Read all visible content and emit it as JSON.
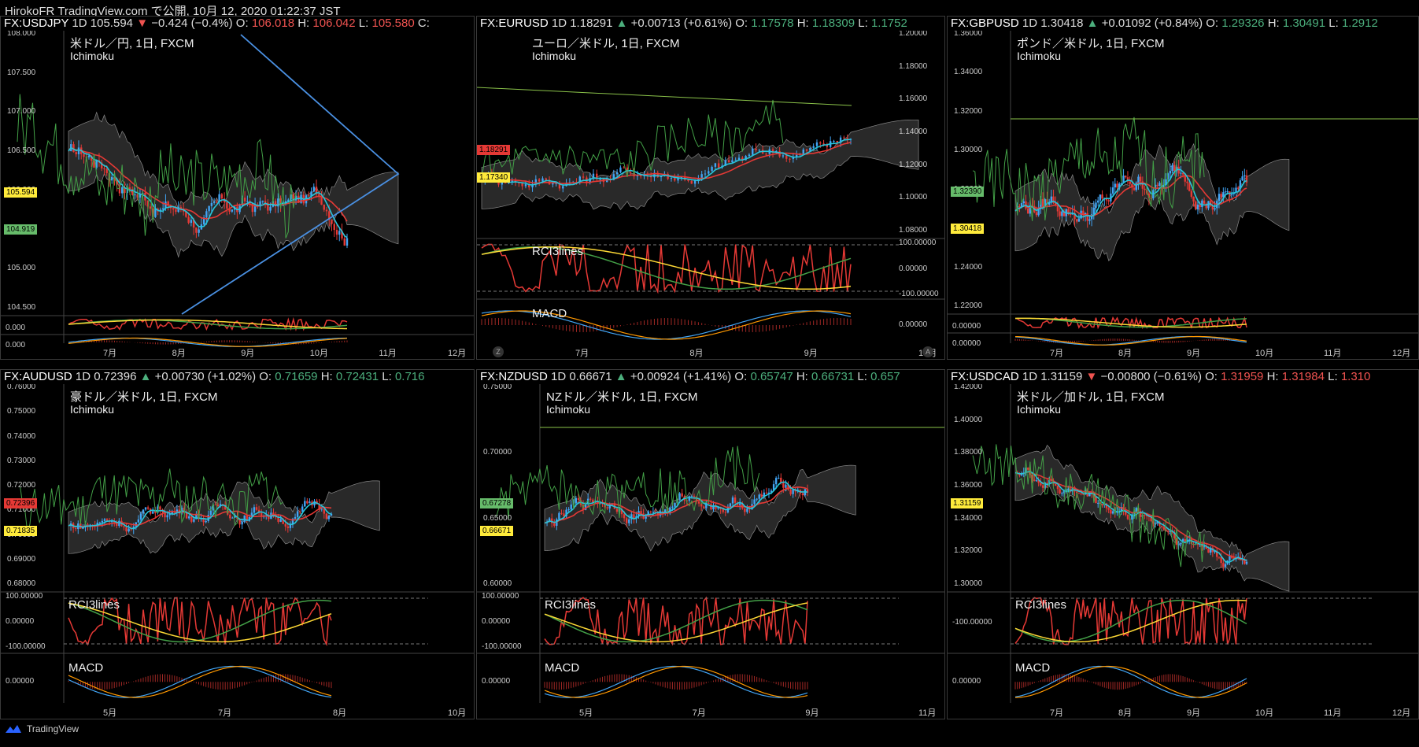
{
  "top_info": "HirokoFR TradingView.com で公開, 10月 12, 2020 01:22:37 JST",
  "footer": {
    "brand": "TradingView",
    "logo_icon": "tradingview-logo-icon"
  },
  "colors": {
    "up": "#4caf7d",
    "down": "#ef5350",
    "tenkan": "#26c6da",
    "kijun": "#e53935",
    "chikou": "#43a047",
    "cloud": "#555555"
  },
  "panels": [
    {
      "symbol": "FX:USDJPY",
      "interval": "1D",
      "last": "105.594",
      "change_arrow": "▼",
      "change": "−0.424 (−0.4%)",
      "direction": "down",
      "o_label": "O:",
      "o": "106.018",
      "h_label": "H:",
      "h": "106.042",
      "l_label": "L:",
      "l": "105.580",
      "c_label": "C:",
      "title": "米ドル／円, 1日, FXCM",
      "indicator": "Ichimoku",
      "y_ticks": [
        "108.000",
        "107.500",
        "107.000",
        "106.500",
        "106.000",
        "105.500",
        "105.000",
        "104.500"
      ],
      "x_ticks": [
        "7月",
        "8月",
        "9月",
        "10月",
        "11月",
        "12月"
      ],
      "price_tags": [
        {
          "text": "105.594",
          "bg": "#ffeb3b"
        },
        {
          "text": "104.919",
          "bg": "#66bb6a"
        }
      ],
      "sub1_label": "RCI3lines",
      "sub1_ticks": [
        "0.000"
      ],
      "sub2_label": "MACD",
      "sub2_ticks": [
        "0.000"
      ]
    },
    {
      "symbol": "FX:EURUSD",
      "interval": "1D",
      "last": "1.18291",
      "change_arrow": "▲",
      "change": "+0.00713 (+0.61%)",
      "direction": "up",
      "o_label": "O:",
      "o": "1.17578",
      "h_label": "H:",
      "h": "1.18309",
      "l_label": "L:",
      "l": "1.1752",
      "title": "ユーロ／米ドル, 1日, FXCM",
      "indicator": "Ichimoku",
      "y_ticks": [
        "1.20000",
        "1.18000",
        "1.16000",
        "1.14000",
        "1.12000",
        "1.10000",
        "1.08000"
      ],
      "x_ticks": [
        "7月",
        "8月",
        "9月",
        "10月"
      ],
      "price_tags": [
        {
          "text": "1.18291",
          "bg": "#e53935"
        },
        {
          "text": "1.17340",
          "bg": "#ffeb3b"
        }
      ],
      "sub1_label": "RCI3lines",
      "sub1_ticks": [
        "100.00000",
        "0.00000",
        "-100.00000"
      ],
      "sub2_label": "MACD",
      "sub2_ticks": [
        "0.00000"
      ]
    },
    {
      "symbol": "FX:GBPUSD",
      "interval": "1D",
      "last": "1.30418",
      "change_arrow": "▲",
      "change": "+0.01092 (+0.84%)",
      "direction": "up",
      "o_label": "O:",
      "o": "1.29326",
      "h_label": "H:",
      "h": "1.30491",
      "l_label": "L:",
      "l": "1.2912",
      "title": "ポンド／米ドル, 1日, FXCM",
      "indicator": "Ichimoku",
      "y_ticks": [
        "1.36000",
        "1.34000",
        "1.32000",
        "1.30000",
        "1.28000",
        "1.26000",
        "1.24000",
        "1.22000"
      ],
      "x_ticks": [
        "7月",
        "8月",
        "9月",
        "10月",
        "11月",
        "12月"
      ],
      "price_tags": [
        {
          "text": "1.32390",
          "bg": "#66bb6a"
        },
        {
          "text": "1.30418",
          "bg": "#ffeb3b"
        }
      ],
      "sub1_label": "RCI3lines",
      "sub1_ticks": [
        "0.00000"
      ],
      "sub2_label": "MACD",
      "sub2_ticks": [
        "0.00000"
      ]
    },
    {
      "symbol": "FX:AUDUSD",
      "interval": "1D",
      "last": "0.72396",
      "change_arrow": "▲",
      "change": "+0.00730 (+1.02%)",
      "direction": "up",
      "o_label": "O:",
      "o": "0.71659",
      "h_label": "H:",
      "h": "0.72431",
      "l_label": "L:",
      "l": "0.716",
      "title": "豪ドル／米ドル, 1日, FXCM",
      "indicator": "Ichimoku",
      "y_ticks": [
        "0.76000",
        "0.75000",
        "0.74000",
        "0.73000",
        "0.72000",
        "0.71000",
        "0.70000",
        "0.69000",
        "0.68000"
      ],
      "x_ticks": [
        "5月",
        "7月",
        "8月",
        "10月"
      ],
      "price_tags": [
        {
          "text": "0.72396",
          "bg": "#e53935"
        },
        {
          "text": "0.71835",
          "bg": "#ffeb3b"
        }
      ],
      "sub1_label": "RCI3lines",
      "sub1_ticks": [
        "100.00000",
        "0.00000",
        "-100.00000"
      ],
      "sub2_label": "MACD",
      "sub2_ticks": [
        "0.00000"
      ]
    },
    {
      "symbol": "FX:NZDUSD",
      "interval": "1D",
      "last": "0.66671",
      "change_arrow": "▲",
      "change": "+0.00924 (+1.41%)",
      "direction": "up",
      "o_label": "O:",
      "o": "0.65747",
      "h_label": "H:",
      "h": "0.66731",
      "l_label": "L:",
      "l": "0.657",
      "title": "NZドル／米ドル, 1日, FXCM",
      "indicator": "Ichimoku",
      "y_ticks": [
        "0.75000",
        "0.70000",
        "0.65000",
        "0.60000"
      ],
      "x_ticks": [
        "5月",
        "7月",
        "9月",
        "11月"
      ],
      "price_tags": [
        {
          "text": "0.67278",
          "bg": "#66bb6a"
        },
        {
          "text": "0.66671",
          "bg": "#ffeb3b"
        }
      ],
      "sub1_label": "RCI3lines",
      "sub1_ticks": [
        "100.00000",
        "0.00000",
        "-100.00000"
      ],
      "sub2_label": "MACD",
      "sub2_ticks": [
        "0.00000"
      ]
    },
    {
      "symbol": "FX:USDCAD",
      "interval": "1D",
      "last": "1.31159",
      "change_arrow": "▼",
      "change": "−0.00800 (−0.61%)",
      "direction": "down",
      "o_label": "O:",
      "o": "1.31959",
      "h_label": "H:",
      "h": "1.31984",
      "l_label": "L:",
      "l": "1.310",
      "title": "米ドル／加ドル, 1日, FXCM",
      "indicator": "Ichimoku",
      "y_ticks": [
        "1.42000",
        "1.40000",
        "1.38000",
        "1.36000",
        "1.34000",
        "1.32000",
        "1.30000"
      ],
      "x_ticks": [
        "7月",
        "8月",
        "9月",
        "10月",
        "11月",
        "12月"
      ],
      "price_tags": [
        {
          "text": "1.31159",
          "bg": "#ffeb3b"
        }
      ],
      "sub1_label": "RCI3lines",
      "sub1_ticks": [
        "-100.00000"
      ],
      "sub2_label": "MACD",
      "sub2_ticks": [
        "0.00000"
      ]
    }
  ]
}
